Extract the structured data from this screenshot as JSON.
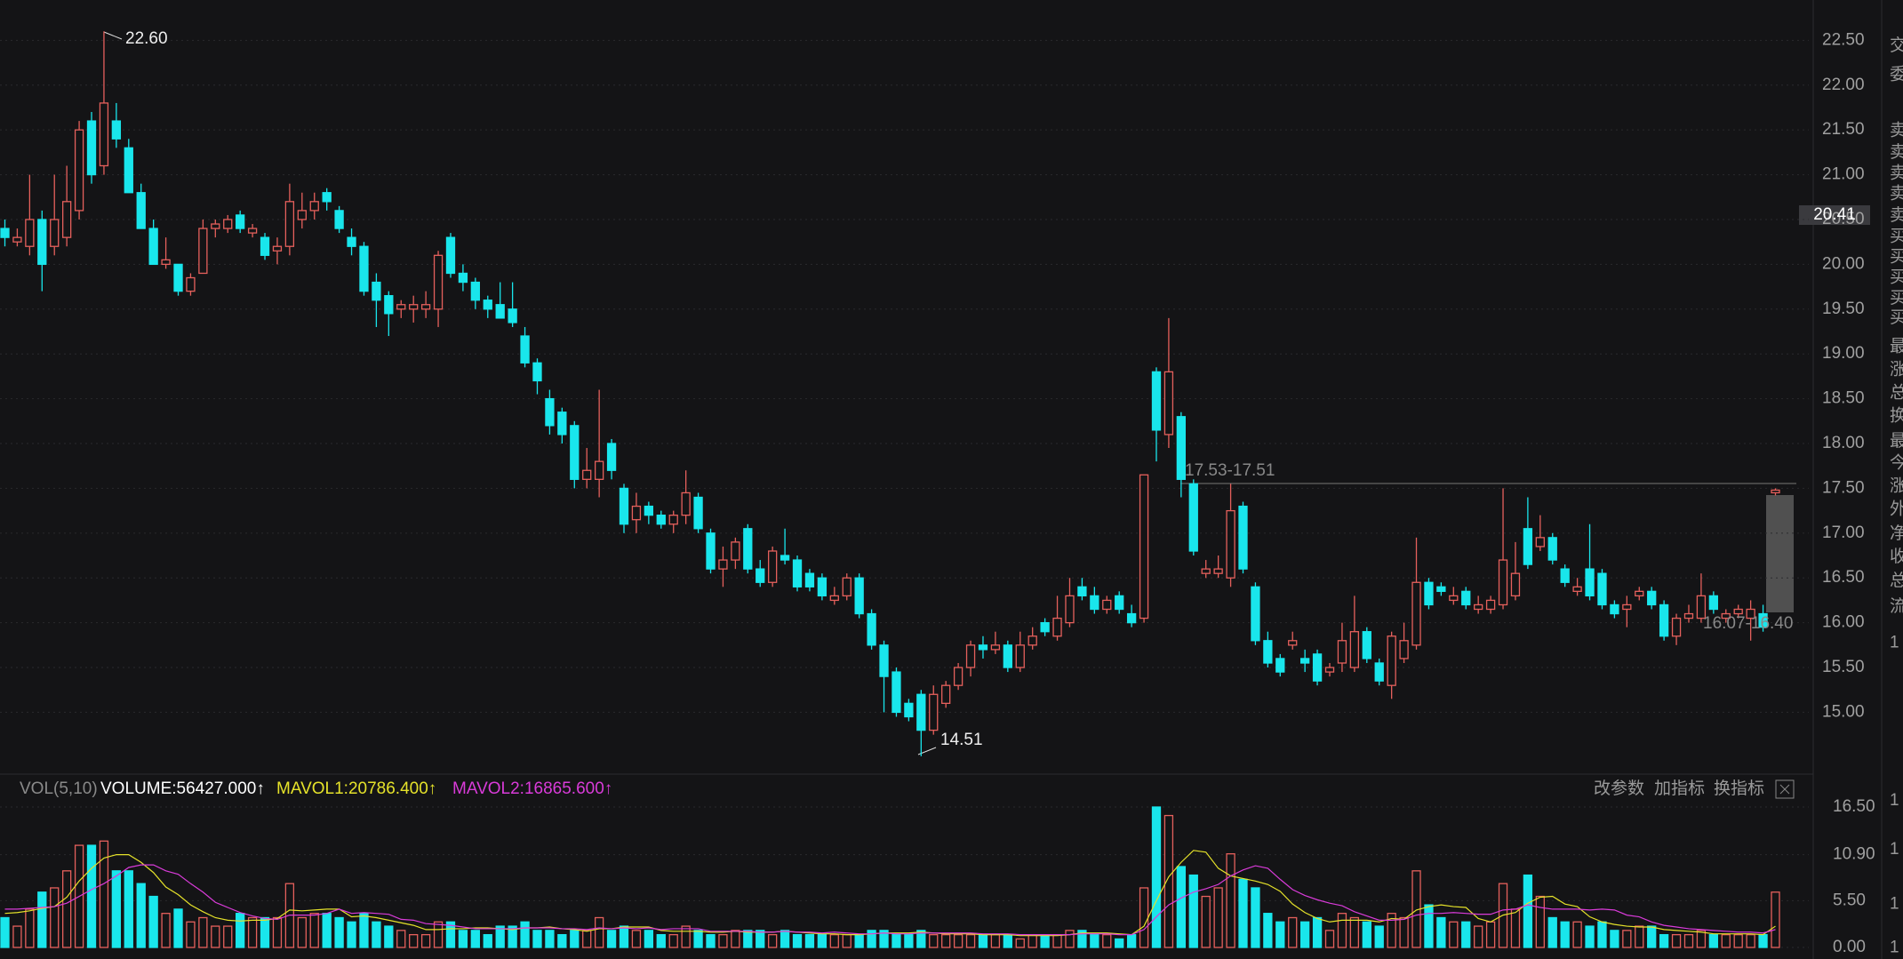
{
  "toolbar": {
    "indicator": "VOL(5,10)",
    "volume": "VOLUME:56427.000↑",
    "mavol1": "MAVOL1:20786.400↑",
    "mavol2": "MAVOL2:16865.600↑",
    "buttons": [
      "改参数",
      "加指标",
      "换指标"
    ]
  },
  "side_panel": [
    "交",
    "委",
    "卖",
    "卖",
    "卖",
    "卖",
    "卖",
    "买",
    "买",
    "买",
    "买",
    "买",
    "最",
    "涨",
    "总",
    "换",
    "最",
    "今",
    "涨",
    "外",
    "净",
    "收",
    "总",
    "流",
    "1",
    "1",
    "1",
    "1",
    "1"
  ],
  "chart_data": [
    {
      "type": "candlestick",
      "up_color": "#e5605c",
      "down_color": "#19e6ec",
      "grid": true,
      "annotations": [
        "22.60",
        "14.51",
        "17.53-17.51",
        "16.07-16.40",
        "20.41"
      ],
      "ylim": [
        14.3,
        22.95
      ],
      "yticks": [
        {
          "value": 15,
          "label": "15.00"
        },
        {
          "value": 15.5,
          "label": "15.50"
        },
        {
          "value": 16,
          "label": "16.00"
        },
        {
          "value": 16.5,
          "label": "16.50"
        },
        {
          "value": 17,
          "label": "17.00"
        },
        {
          "value": 17.5,
          "label": "17.50"
        },
        {
          "value": 18,
          "label": "18.00"
        },
        {
          "value": 18.5,
          "label": "18.50"
        },
        {
          "value": 19,
          "label": "19.00"
        },
        {
          "value": 19.5,
          "label": "19.50"
        },
        {
          "value": 20,
          "label": "20.00"
        },
        {
          "value": 20.5,
          "label": "20.50"
        },
        {
          "value": 21,
          "label": "21.00"
        },
        {
          "value": 21.5,
          "label": "21.50"
        },
        {
          "value": 22,
          "label": "22.00"
        },
        {
          "value": 22.5,
          "label": "22.50"
        }
      ],
      "open": [
        20.4,
        20.25,
        20.2,
        20.5,
        20.2,
        20.3,
        20.6,
        21.6,
        21.1,
        21.6,
        21.3,
        20.8,
        20.4,
        20.0,
        20.0,
        19.7,
        19.9,
        20.4,
        20.4,
        20.55,
        20.35,
        20.3,
        20.15,
        20.2,
        20.5,
        20.6,
        20.8,
        20.6,
        20.3,
        20.2,
        19.8,
        19.65,
        19.5,
        19.5,
        19.5,
        19.5,
        20.3,
        19.9,
        19.8,
        19.6,
        19.55,
        19.5,
        19.2,
        18.9,
        18.5,
        18.35,
        18.2,
        17.6,
        17.6,
        18.0,
        17.5,
        17.15,
        17.3,
        17.2,
        17.1,
        17.2,
        17.4,
        17.0,
        16.6,
        16.7,
        17.05,
        16.6,
        16.45,
        16.75,
        16.7,
        16.55,
        16.5,
        16.25,
        16.3,
        16.5,
        16.1,
        15.75,
        15.45,
        15.1,
        15.2,
        14.8,
        15.1,
        15.3,
        15.5,
        15.75,
        15.7,
        15.75,
        15.5,
        15.75,
        16.0,
        15.85,
        16.0,
        16.4,
        16.3,
        16.15,
        16.3,
        16.1,
        16.05,
        18.8,
        18.1,
        18.3,
        17.55,
        16.55,
        16.55,
        16.5,
        17.3,
        16.4,
        15.8,
        15.6,
        15.75,
        15.6,
        15.65,
        15.45,
        15.55,
        15.5,
        15.9,
        15.55,
        15.3,
        15.6,
        15.75,
        16.45,
        16.4,
        16.25,
        16.35,
        16.15,
        16.15,
        16.2,
        16.3,
        17.05,
        16.85,
        16.95,
        16.6,
        16.35,
        16.6,
        16.55,
        16.2,
        16.15,
        16.3,
        16.35,
        16.2,
        15.85,
        16.05,
        16.05,
        16.3,
        16.05,
        16.1,
        16.05,
        16.1,
        17.45
      ],
      "high": [
        20.5,
        20.4,
        21.0,
        20.6,
        21.0,
        21.1,
        21.6,
        21.7,
        22.6,
        21.8,
        21.4,
        20.9,
        20.5,
        20.3,
        20.0,
        19.9,
        20.5,
        20.5,
        20.55,
        20.6,
        20.45,
        20.35,
        20.3,
        20.9,
        20.8,
        20.8,
        20.85,
        20.65,
        20.4,
        20.25,
        19.9,
        19.7,
        19.6,
        19.65,
        19.7,
        20.15,
        20.35,
        20.0,
        19.85,
        19.65,
        19.8,
        19.8,
        19.3,
        18.95,
        18.6,
        18.4,
        18.25,
        17.95,
        18.6,
        18.05,
        17.55,
        17.45,
        17.35,
        17.25,
        17.25,
        17.7,
        17.45,
        17.05,
        16.85,
        16.95,
        17.1,
        16.7,
        16.85,
        17.05,
        16.75,
        16.6,
        16.55,
        16.4,
        16.55,
        16.55,
        16.15,
        15.8,
        15.5,
        15.15,
        15.25,
        15.3,
        15.35,
        15.55,
        15.8,
        15.85,
        15.9,
        15.8,
        15.9,
        15.95,
        16.05,
        16.3,
        16.5,
        16.5,
        16.4,
        16.3,
        16.35,
        16.2,
        17.65,
        18.85,
        19.4,
        18.35,
        17.6,
        16.7,
        16.75,
        17.55,
        17.35,
        16.45,
        15.9,
        15.65,
        15.9,
        15.7,
        15.7,
        15.55,
        16.0,
        16.3,
        15.95,
        15.6,
        15.9,
        16.0,
        16.95,
        16.5,
        16.45,
        16.4,
        16.4,
        16.3,
        16.3,
        17.5,
        16.9,
        17.4,
        17.2,
        17.0,
        16.65,
        16.5,
        17.1,
        16.6,
        16.25,
        16.3,
        16.4,
        16.4,
        16.25,
        16.1,
        16.2,
        16.55,
        16.35,
        16.15,
        16.2,
        16.25,
        16.2,
        17.5
      ],
      "low": [
        20.2,
        20.2,
        20.1,
        19.7,
        20.1,
        20.2,
        20.5,
        20.9,
        21.0,
        21.3,
        20.8,
        20.4,
        20.0,
        19.95,
        19.65,
        19.65,
        19.9,
        20.3,
        20.35,
        20.35,
        20.3,
        20.05,
        20.0,
        20.1,
        20.4,
        20.5,
        20.6,
        20.35,
        20.1,
        19.65,
        19.3,
        19.2,
        19.4,
        19.35,
        19.4,
        19.3,
        19.85,
        19.7,
        19.5,
        19.4,
        19.4,
        19.3,
        18.85,
        18.55,
        18.1,
        18.0,
        17.5,
        17.5,
        17.4,
        17.6,
        17.0,
        17.0,
        17.1,
        17.05,
        17.0,
        17.1,
        17.0,
        16.55,
        16.4,
        16.6,
        16.55,
        16.4,
        16.4,
        16.65,
        16.35,
        16.35,
        16.25,
        16.2,
        16.25,
        16.05,
        15.7,
        15.0,
        14.95,
        14.9,
        14.51,
        14.75,
        15.05,
        15.25,
        15.4,
        15.6,
        15.65,
        15.45,
        15.45,
        15.7,
        15.85,
        15.8,
        15.95,
        16.25,
        16.1,
        16.1,
        16.1,
        15.95,
        16.0,
        17.8,
        17.95,
        17.4,
        16.75,
        16.5,
        16.5,
        16.4,
        16.55,
        15.75,
        15.5,
        15.4,
        15.7,
        15.45,
        15.3,
        15.4,
        15.45,
        15.45,
        15.55,
        15.3,
        15.15,
        15.55,
        15.7,
        16.15,
        16.3,
        16.2,
        16.15,
        16.1,
        16.1,
        16.15,
        16.25,
        16.6,
        16.8,
        16.65,
        16.4,
        16.3,
        16.25,
        16.15,
        16.05,
        15.95,
        16.25,
        16.15,
        15.8,
        15.75,
        16.0,
        16.0,
        16.1,
        16.0,
        16.05,
        15.8,
        15.9,
        17.42
      ],
      "close": [
        20.3,
        20.3,
        20.5,
        20.0,
        20.5,
        20.7,
        21.5,
        21.0,
        21.8,
        21.4,
        20.8,
        20.4,
        20.0,
        20.05,
        19.7,
        19.85,
        20.4,
        20.45,
        20.5,
        20.4,
        20.4,
        20.1,
        20.2,
        20.7,
        20.6,
        20.7,
        20.7,
        20.4,
        20.2,
        19.7,
        19.6,
        19.45,
        19.55,
        19.55,
        19.55,
        20.1,
        19.9,
        19.8,
        19.6,
        19.5,
        19.4,
        19.35,
        18.9,
        18.7,
        18.2,
        18.1,
        17.6,
        17.7,
        17.8,
        17.7,
        17.1,
        17.3,
        17.2,
        17.1,
        17.2,
        17.45,
        17.05,
        16.6,
        16.7,
        16.9,
        16.6,
        16.45,
        16.8,
        16.7,
        16.4,
        16.4,
        16.3,
        16.3,
        16.5,
        16.1,
        15.75,
        15.4,
        15.0,
        14.95,
        14.8,
        15.2,
        15.3,
        15.5,
        15.75,
        15.7,
        15.75,
        15.5,
        15.75,
        15.85,
        15.9,
        16.05,
        16.3,
        16.3,
        16.15,
        16.25,
        16.15,
        16.0,
        17.65,
        18.15,
        18.8,
        17.6,
        16.8,
        16.6,
        16.6,
        17.25,
        16.6,
        15.8,
        15.55,
        15.45,
        15.8,
        15.55,
        15.35,
        15.5,
        15.8,
        15.9,
        15.6,
        15.35,
        15.85,
        15.8,
        16.45,
        16.2,
        16.35,
        16.3,
        16.2,
        16.2,
        16.25,
        16.7,
        16.55,
        16.65,
        16.95,
        16.7,
        16.45,
        16.4,
        16.3,
        16.2,
        16.1,
        16.2,
        16.35,
        16.2,
        15.85,
        16.05,
        16.1,
        16.3,
        16.15,
        16.1,
        16.15,
        16.15,
        15.95,
        17.48
      ]
    },
    {
      "type": "bar",
      "ylim": [
        0,
        16.5
      ],
      "yticks": [
        {
          "value": 0,
          "label": "0.00"
        },
        {
          "value": 5.5,
          "label": "5.50"
        },
        {
          "value": 10.9,
          "label": "10.90"
        },
        {
          "value": 16.5,
          "label": "16.50"
        }
      ],
      "series": [
        {
          "name": "VOLUME",
          "values": [
            3.5,
            2.5,
            4.5,
            6.5,
            7,
            9,
            12,
            12,
            12.5,
            9,
            9,
            7.5,
            6,
            4,
            4.5,
            3,
            3.5,
            2.5,
            2.5,
            4,
            3.5,
            3.5,
            3.5,
            7.5,
            3.5,
            4,
            4,
            3.5,
            3,
            4,
            3,
            2.5,
            2,
            1.5,
            1.5,
            3,
            3,
            2,
            2,
            1.5,
            2.5,
            2.5,
            3,
            2,
            2,
            1.5,
            2,
            2,
            3.5,
            2,
            2.5,
            2,
            2,
            1.5,
            1.5,
            2.5,
            2,
            1.5,
            1.5,
            2,
            2,
            2,
            1.5,
            2,
            1.5,
            1.5,
            1.5,
            1.5,
            1.5,
            1.5,
            2,
            2,
            1.5,
            1.5,
            2,
            1.5,
            1.5,
            1.5,
            1.5,
            1.5,
            1.5,
            1.5,
            1,
            1.5,
            1.5,
            1.5,
            2,
            2,
            1.5,
            1.5,
            1,
            1.5,
            7,
            16.5,
            15.5,
            9.5,
            8.5,
            6,
            7,
            11,
            8,
            7,
            4,
            3,
            3.5,
            3,
            3.5,
            2,
            4,
            3.5,
            3,
            2.5,
            4,
            3.5,
            9,
            5,
            3.5,
            3,
            3,
            2.5,
            3,
            7.5,
            4.5,
            8.5,
            6,
            3.5,
            3,
            3,
            2.5,
            3,
            2,
            2,
            2.5,
            2.5,
            1.5,
            1.5,
            1.5,
            2,
            1.5,
            1.5,
            1.5,
            1.5,
            1.5,
            6.5
          ]
        },
        {
          "name": "MAVOL1",
          "color": "#e5e22a",
          "values": [
            4.0,
            4.1,
            4.3,
            4.6,
            4.8,
            5.9,
            7.8,
            9.3,
            10.5,
            10.9,
            10.9,
            10,
            8.8,
            7.1,
            6.2,
            5,
            4.2,
            3.5,
            3.2,
            3.1,
            3.2,
            3.2,
            3.4,
            4.4,
            4.3,
            4.4,
            4.5,
            4.5,
            3.6,
            3.7,
            3.5,
            3.2,
            2.9,
            2.6,
            2.1,
            2.1,
            2.2,
            2.2,
            2.3,
            2.3,
            2.2,
            2.1,
            2.3,
            2.3,
            2.4,
            2.2,
            2.1,
            1.9,
            2.2,
            2.2,
            2.4,
            2.4,
            2.4,
            2,
            1.9,
            1.9,
            1.9,
            1.8,
            1.8,
            1.9,
            1.8,
            1.8,
            1.8,
            1.9,
            1.8,
            1.7,
            1.6,
            1.6,
            1.5,
            1.5,
            1.6,
            1.7,
            1.7,
            1.7,
            1.8,
            1.7,
            1.6,
            1.6,
            1.6,
            1.5,
            1.5,
            1.5,
            1.4,
            1.4,
            1.4,
            1.4,
            1.5,
            1.7,
            1.7,
            1.7,
            1.6,
            1.5,
            2.5,
            5.5,
            8.3,
            10,
            11.4,
            11.2,
            9.3,
            8.4,
            8.1,
            7.8,
            7.4,
            6.6,
            5.1,
            4.1,
            3.4,
            3,
            3.2,
            3.2,
            3.2,
            3,
            3.4,
            3.3,
            4.4,
            4.8,
            5,
            4.8,
            4.7,
            3.4,
            3,
            3.8,
            4.1,
            5.2,
            5.9,
            6,
            5.1,
            4.8,
            3.6,
            3,
            2.7,
            2.5,
            2.4,
            2.4,
            2.1,
            2,
            1.9,
            1.8,
            1.6,
            1.6,
            1.6,
            1.6,
            1.5,
            2.5
          ]
        },
        {
          "name": "MAVOL2",
          "color": "#d93bd9",
          "values": [
            4.5,
            4.5,
            4.6,
            4.7,
            4.8,
            5.2,
            6.0,
            6.8,
            7.5,
            8.4,
            9.4,
            9.7,
            9.7,
            9,
            8.6,
            7.5,
            6.5,
            5.3,
            4.7,
            4.1,
            3.7,
            3.4,
            3.3,
            3.8,
            3.8,
            3.8,
            4,
            4.5,
            4,
            4.1,
            4,
            3.9,
            3.3,
            3.2,
            2.8,
            2.7,
            2.6,
            2.4,
            2.2,
            2.2,
            2.2,
            2.2,
            2.3,
            2.3,
            2.3,
            2.2,
            2.2,
            2.1,
            2.3,
            2.2,
            2.3,
            2.2,
            2.3,
            2.1,
            2.2,
            2.2,
            2.2,
            1.9,
            1.9,
            1.9,
            1.9,
            1.8,
            1.8,
            1.9,
            1.8,
            1.8,
            1.7,
            1.8,
            1.7,
            1.6,
            1.6,
            1.7,
            1.6,
            1.6,
            1.7,
            1.7,
            1.7,
            1.7,
            1.7,
            1.6,
            1.6,
            1.6,
            1.5,
            1.5,
            1.5,
            1.5,
            1.5,
            1.6,
            1.6,
            1.6,
            1.5,
            1.5,
            2.1,
            3.6,
            5,
            5.8,
            6.5,
            6.9,
            7.4,
            8.4,
            9.1,
            9.6,
            9.3,
            8,
            6.8,
            6.1,
            5.6,
            5.2,
            4.9,
            4.2,
            3.7,
            3.2,
            3.2,
            3.3,
            3.8,
            4,
            4,
            4.1,
            4,
            3.9,
            3.9,
            4.4,
            4.5,
            5,
            4.7,
            4.5,
            4.5,
            4.5,
            4.4,
            4.5,
            4.4,
            3.8,
            3.6,
            3,
            2.6,
            2.4,
            2.2,
            2.1,
            2,
            1.9,
            1.8,
            1.8,
            1.7,
            2.1
          ]
        }
      ]
    }
  ]
}
